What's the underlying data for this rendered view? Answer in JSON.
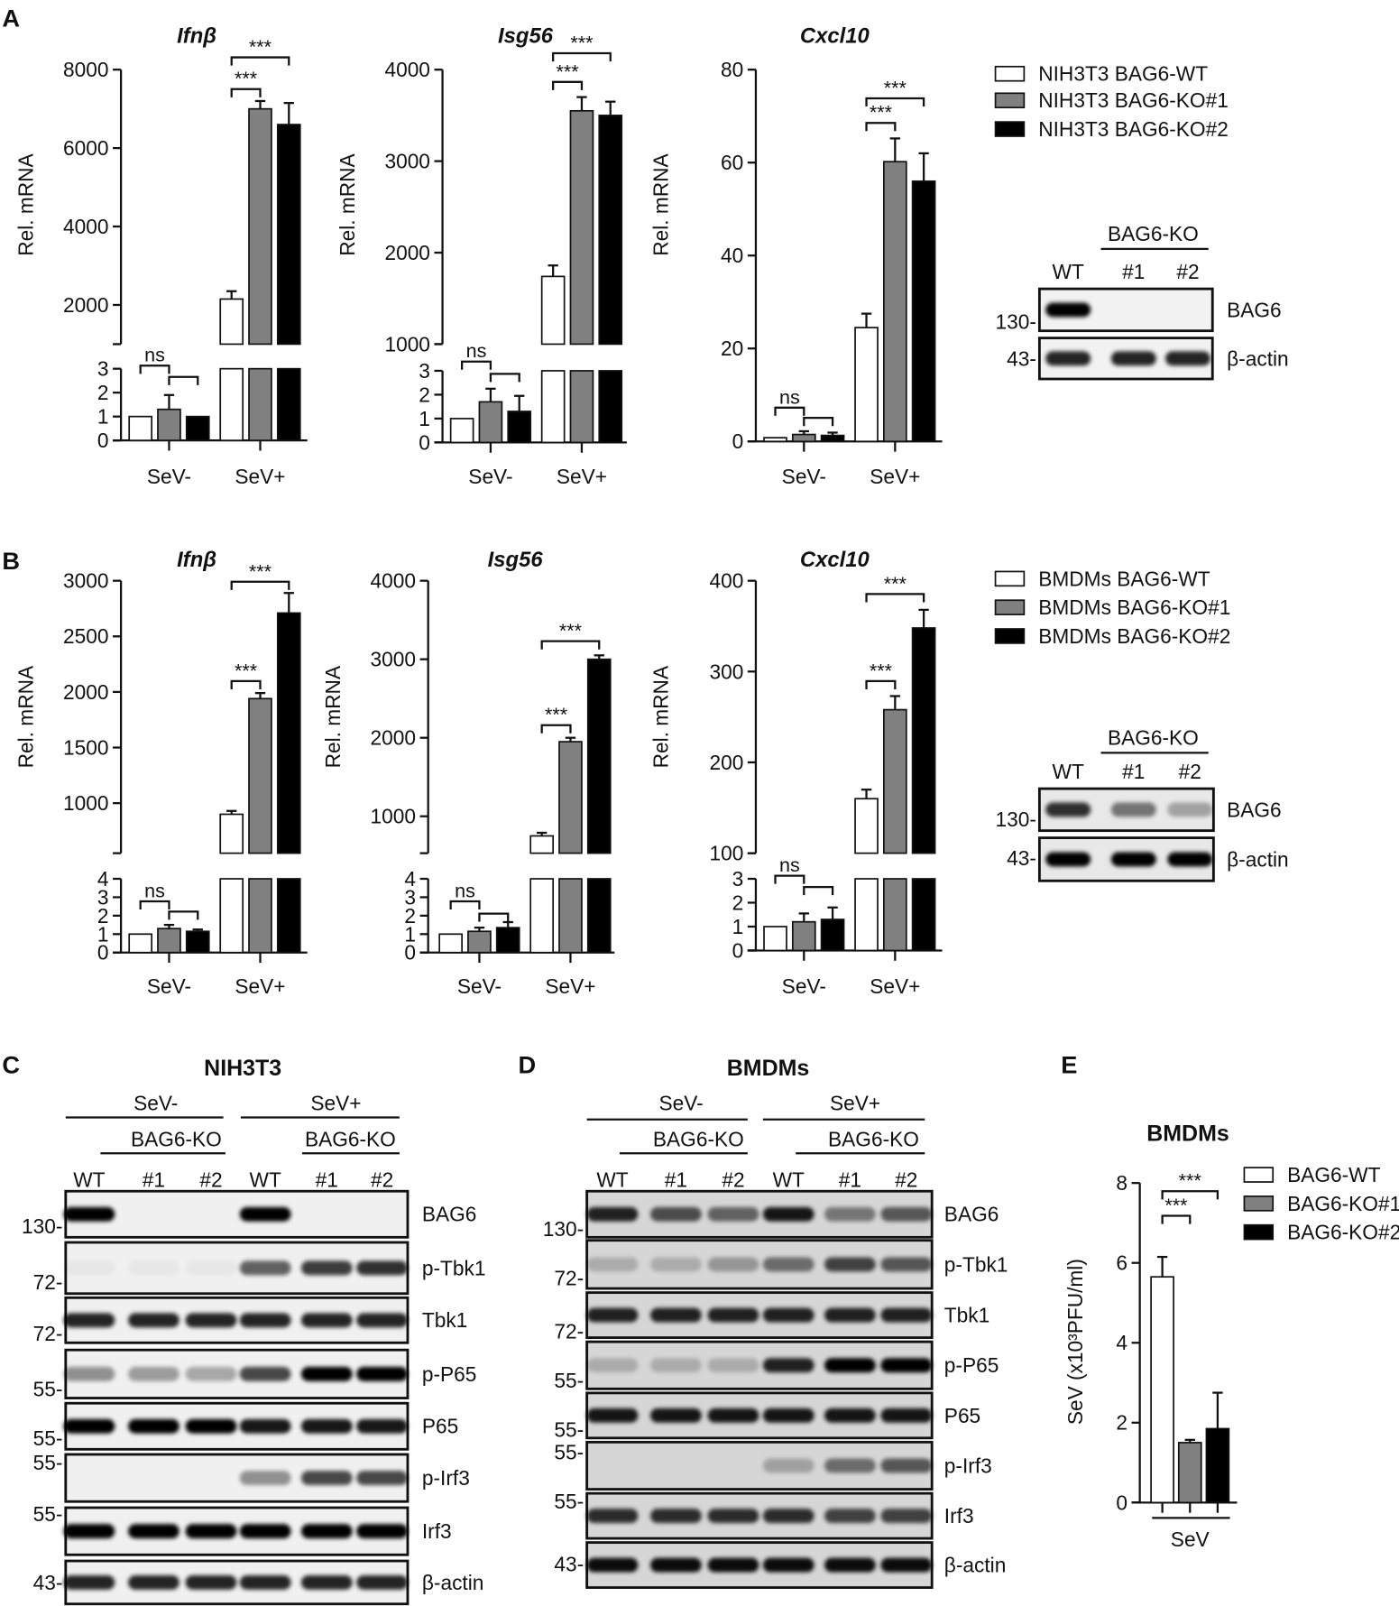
{
  "panel_labels": [
    "A",
    "B",
    "C",
    "D",
    "E"
  ],
  "colors": {
    "WT": "#ffffff",
    "KO1": "#808080",
    "KO2": "#000000"
  },
  "chart_data": [
    {
      "type": "bar",
      "panel": "A",
      "title": "Ifnβ",
      "ylabel": "Rel. mRNA",
      "categories": [
        "SeV-",
        "SeV+"
      ],
      "y_axis_break": true,
      "ylim_lower": [
        0,
        3
      ],
      "ylim_upper": [
        1000,
        8000
      ],
      "yticks_lower": [
        "0",
        "1",
        "2",
        "3"
      ],
      "yticks_upper": [
        "2000",
        "4000",
        "6000",
        "8000"
      ],
      "series": [
        {
          "name": "NIH3T3 BAG6-WT",
          "values": [
            1,
            2150
          ],
          "errors": [
            0,
            200
          ]
        },
        {
          "name": "NIH3T3 BAG6-KO#1",
          "values": [
            1.3,
            7000
          ],
          "errors": [
            0.6,
            200
          ]
        },
        {
          "name": "NIH3T3 BAG6-KO#2",
          "values": [
            1,
            6600
          ],
          "errors": [
            0,
            550
          ]
        }
      ],
      "annotations": [
        {
          "category": "SeV+",
          "compare": [
            0,
            1
          ],
          "label": "***"
        },
        {
          "category": "SeV+",
          "compare": [
            0,
            2
          ],
          "label": "***"
        },
        {
          "category": "SeV-",
          "compare": [
            0,
            1
          ],
          "label": "ns"
        },
        {
          "category": "SeV-",
          "compare": [
            1,
            2
          ],
          "label": ""
        }
      ]
    },
    {
      "type": "bar",
      "panel": "A",
      "title": "Isg56",
      "ylabel": "Rel. mRNA",
      "categories": [
        "SeV-",
        "SeV+"
      ],
      "y_axis_break": true,
      "ylim_lower": [
        0,
        3
      ],
      "ylim_upper": [
        1000,
        4000
      ],
      "yticks_lower": [
        "0",
        "1",
        "2",
        "3"
      ],
      "yticks_upper": [
        "1000",
        "2000",
        "3000",
        "4000"
      ],
      "series": [
        {
          "name": "NIH3T3 BAG6-WT",
          "values": [
            1,
            1740
          ],
          "errors": [
            0,
            120
          ]
        },
        {
          "name": "NIH3T3 BAG6-KO#1",
          "values": [
            1.7,
            3550
          ],
          "errors": [
            0.55,
            150
          ]
        },
        {
          "name": "NIH3T3 BAG6-KO#2",
          "values": [
            1.3,
            3500
          ],
          "errors": [
            0.65,
            150
          ]
        }
      ],
      "annotations": [
        {
          "category": "SeV+",
          "compare": [
            0,
            1
          ],
          "label": "***"
        },
        {
          "category": "SeV+",
          "compare": [
            0,
            2
          ],
          "label": "***"
        },
        {
          "category": "SeV-",
          "compare": [
            0,
            1
          ],
          "label": "ns"
        },
        {
          "category": "SeV-",
          "compare": [
            1,
            2
          ],
          "label": ""
        }
      ]
    },
    {
      "type": "bar",
      "panel": "A",
      "title": "Cxcl10",
      "ylabel": "Rel. mRNA",
      "categories": [
        "SeV-",
        "SeV+"
      ],
      "y_axis_break": false,
      "ylim": [
        0,
        80
      ],
      "yticks": [
        "0",
        "20",
        "40",
        "60",
        "80"
      ],
      "series": [
        {
          "name": "NIH3T3 BAG6-WT",
          "values": [
            0.8,
            24.5
          ],
          "errors": [
            0,
            3
          ]
        },
        {
          "name": "NIH3T3 BAG6-KO#1",
          "values": [
            1.5,
            60.2
          ],
          "errors": [
            0.7,
            5
          ]
        },
        {
          "name": "NIH3T3 BAG6-KO#2",
          "values": [
            1.3,
            56
          ],
          "errors": [
            0.6,
            6
          ]
        }
      ],
      "annotations": [
        {
          "category": "SeV+",
          "compare": [
            0,
            1
          ],
          "label": "***"
        },
        {
          "category": "SeV+",
          "compare": [
            0,
            2
          ],
          "label": "***"
        },
        {
          "category": "SeV-",
          "compare": [
            0,
            1
          ],
          "label": "ns"
        },
        {
          "category": "SeV-",
          "compare": [
            1,
            2
          ],
          "label": ""
        }
      ]
    },
    {
      "type": "bar",
      "panel": "B",
      "title": "Ifnβ",
      "ylabel": "Rel. mRNA",
      "categories": [
        "SeV-",
        "SeV+"
      ],
      "y_axis_break": true,
      "ylim_lower": [
        0,
        4
      ],
      "ylim_upper": [
        550,
        3000
      ],
      "yticks_lower": [
        "0",
        "1",
        "2",
        "3",
        "4"
      ],
      "yticks_upper": [
        "1000",
        "1500",
        "2000",
        "2500",
        "3000"
      ],
      "series": [
        {
          "name": "BMDMs BAG6-WT",
          "values": [
            1,
            900
          ],
          "errors": [
            0,
            30
          ]
        },
        {
          "name": "BMDMs BAG6-KO#1",
          "values": [
            1.3,
            1940
          ],
          "errors": [
            0.2,
            50
          ]
        },
        {
          "name": "BMDMs BAG6-KO#2",
          "values": [
            1.15,
            2710
          ],
          "errors": [
            0.1,
            180
          ]
        }
      ],
      "annotations": [
        {
          "category": "SeV+",
          "compare": [
            0,
            1
          ],
          "label": "***"
        },
        {
          "category": "SeV+",
          "compare": [
            0,
            2
          ],
          "label": "***"
        },
        {
          "category": "SeV-",
          "compare": [
            0,
            1
          ],
          "label": "ns"
        },
        {
          "category": "SeV-",
          "compare": [
            1,
            2
          ],
          "label": ""
        }
      ]
    },
    {
      "type": "bar",
      "panel": "B",
      "title": "Isg56",
      "ylabel": "Rel. mRNA",
      "categories": [
        "SeV-",
        "SeV+"
      ],
      "y_axis_break": true,
      "ylim_lower": [
        0,
        4
      ],
      "ylim_upper": [
        530,
        4000
      ],
      "yticks_lower": [
        "0",
        "1",
        "2",
        "3",
        "4"
      ],
      "yticks_upper": [
        "1000",
        "2000",
        "3000",
        "4000"
      ],
      "series": [
        {
          "name": "BMDMs BAG6-WT",
          "values": [
            1,
            750
          ],
          "errors": [
            0,
            40
          ]
        },
        {
          "name": "BMDMs BAG6-KO#1",
          "values": [
            1.15,
            1950
          ],
          "errors": [
            0.2,
            50
          ]
        },
        {
          "name": "BMDMs BAG6-KO#2",
          "values": [
            1.35,
            3000
          ],
          "errors": [
            0.3,
            50
          ]
        }
      ],
      "annotations": [
        {
          "category": "SeV+",
          "compare": [
            0,
            1
          ],
          "label": "***"
        },
        {
          "category": "SeV+",
          "compare": [
            0,
            2
          ],
          "label": "***"
        },
        {
          "category": "SeV-",
          "compare": [
            0,
            1
          ],
          "label": "ns"
        },
        {
          "category": "SeV-",
          "compare": [
            1,
            2
          ],
          "label": ""
        }
      ]
    },
    {
      "type": "bar",
      "panel": "B",
      "title": "Cxcl10",
      "ylabel": "Rel. mRNA",
      "categories": [
        "SeV-",
        "SeV+"
      ],
      "y_axis_break": true,
      "ylim_lower": [
        0,
        3
      ],
      "ylim_upper": [
        100,
        400
      ],
      "yticks_lower": [
        "0",
        "1",
        "2",
        "3"
      ],
      "yticks_upper": [
        "100",
        "200",
        "300",
        "400"
      ],
      "series": [
        {
          "name": "BMDMs BAG6-WT",
          "values": [
            1,
            160
          ],
          "errors": [
            0,
            10
          ]
        },
        {
          "name": "BMDMs BAG6-KO#1",
          "values": [
            1.2,
            258
          ],
          "errors": [
            0.35,
            15
          ]
        },
        {
          "name": "BMDMs BAG6-KO#2",
          "values": [
            1.3,
            348
          ],
          "errors": [
            0.5,
            20
          ]
        }
      ],
      "annotations": [
        {
          "category": "SeV+",
          "compare": [
            0,
            1
          ],
          "label": "***"
        },
        {
          "category": "SeV+",
          "compare": [
            0,
            2
          ],
          "label": "***"
        },
        {
          "category": "SeV-",
          "compare": [
            0,
            1
          ],
          "label": "ns"
        },
        {
          "category": "SeV-",
          "compare": [
            1,
            2
          ],
          "label": ""
        }
      ]
    },
    {
      "type": "bar",
      "panel": "E",
      "title": "BMDMs",
      "ylabel": "SeV (x10³PFU/ml)",
      "categories": [
        "SeV"
      ],
      "y_axis_break": false,
      "ylim": [
        0,
        8
      ],
      "yticks": [
        "0",
        "2",
        "4",
        "6",
        "8"
      ],
      "series": [
        {
          "name": "BAG6-WT",
          "values": [
            5.65
          ],
          "errors": [
            0.5
          ]
        },
        {
          "name": "BAG6-KO#1",
          "values": [
            1.5
          ],
          "errors": [
            0.07
          ]
        },
        {
          "name": "BAG6-KO#2",
          "values": [
            1.85
          ],
          "errors": [
            0.9
          ]
        }
      ],
      "annotations": [
        {
          "category": "SeV",
          "compare": [
            0,
            1
          ],
          "label": "***"
        },
        {
          "category": "SeV",
          "compare": [
            0,
            2
          ],
          "label": "***"
        }
      ]
    }
  ],
  "legends": [
    {
      "panel": "A",
      "entries": [
        "NIH3T3 BAG6-WT",
        "NIH3T3 BAG6-KO#1",
        "NIH3T3 BAG6-KO#2"
      ]
    },
    {
      "panel": "B",
      "entries": [
        "BMDMs BAG6-WT",
        "BMDMs BAG6-KO#1",
        "BMDMs BAG6-KO#2"
      ]
    },
    {
      "panel": "E",
      "entries": [
        "BAG6-WT",
        "BAG6-KO#1",
        "BAG6-KO#2"
      ]
    }
  ],
  "blots": [
    {
      "panel": "A",
      "title": "",
      "groups": [],
      "subgroups": [
        "BAG6-KO"
      ],
      "lanes": [
        "WT",
        "#1",
        "#2"
      ],
      "rows": [
        {
          "label": "BAG6",
          "marker": "130-",
          "bands": [
            1,
            0,
            0
          ]
        },
        {
          "label": "β-actin",
          "marker": "43-",
          "bands": [
            0.85,
            0.85,
            0.85
          ]
        }
      ]
    },
    {
      "panel": "B",
      "title": "",
      "groups": [],
      "subgroups": [
        "BAG6-KO"
      ],
      "lanes": [
        "WT",
        "#1",
        "#2"
      ],
      "rows": [
        {
          "label": "BAG6",
          "marker": "130-",
          "bands": [
            0.8,
            0.5,
            0.3
          ]
        },
        {
          "label": "β-actin",
          "marker": "43-",
          "bands": [
            1,
            1,
            1
          ]
        }
      ]
    },
    {
      "panel": "C",
      "title": "NIH3T3",
      "groups": [
        "SeV-",
        "SeV+"
      ],
      "subgroups": [
        "BAG6-KO",
        "BAG6-KO"
      ],
      "lanes": [
        "WT",
        "#1",
        "#2",
        "WT",
        "#1",
        "#2"
      ],
      "rows": [
        {
          "label": "BAG6",
          "marker": "130-",
          "bands": [
            1,
            0,
            0,
            1,
            0,
            0
          ]
        },
        {
          "label": "p-Tbk1",
          "marker": "72-",
          "bands": [
            0.04,
            0.04,
            0.04,
            0.6,
            0.75,
            0.8
          ]
        },
        {
          "label": "Tbk1",
          "marker": "72-",
          "bands": [
            0.85,
            0.85,
            0.85,
            0.85,
            0.85,
            0.85
          ]
        },
        {
          "label": "p-P65",
          "marker": "55-",
          "bands": [
            0.4,
            0.35,
            0.3,
            0.7,
            1,
            1
          ]
        },
        {
          "label": "P65",
          "marker": "55-",
          "bands": [
            1,
            1,
            1,
            0.9,
            0.9,
            0.9
          ]
        },
        {
          "label": "p-Irf3",
          "marker": "55-",
          "bands": [
            0,
            0,
            0,
            0.4,
            0.7,
            0.7
          ]
        },
        {
          "label": "Irf3",
          "marker": "55-",
          "bands": [
            1,
            1,
            1,
            1,
            1,
            1
          ]
        },
        {
          "label": "β-actin",
          "marker": "43-",
          "bands": [
            0.85,
            0.85,
            0.85,
            0.85,
            0.85,
            0.85
          ]
        }
      ]
    },
    {
      "panel": "D",
      "title": "BMDMs",
      "groups": [
        "SeV-",
        "SeV+"
      ],
      "subgroups": [
        "BAG6-KO",
        "BAG6-KO"
      ],
      "lanes": [
        "WT",
        "#1",
        "#2",
        "WT",
        "#1",
        "#2"
      ],
      "rows": [
        {
          "label": "BAG6",
          "marker": "130-",
          "bands": [
            0.85,
            0.65,
            0.55,
            0.9,
            0.45,
            0.6
          ]
        },
        {
          "label": "p-Tbk1",
          "marker": "72-",
          "bands": [
            0.2,
            0.2,
            0.3,
            0.5,
            0.7,
            0.6
          ]
        },
        {
          "label": "Tbk1",
          "marker": "72-",
          "bands": [
            0.85,
            0.85,
            0.85,
            0.85,
            0.85,
            0.85
          ]
        },
        {
          "label": "p-P65",
          "marker": "55-",
          "bands": [
            0.2,
            0.2,
            0.2,
            0.85,
            1,
            1
          ]
        },
        {
          "label": "P65",
          "marker": "55-",
          "bands": [
            0.9,
            0.9,
            0.9,
            0.9,
            0.9,
            0.9
          ]
        },
        {
          "label": "p-Irf3",
          "marker": "55-",
          "bands": [
            0,
            0,
            0,
            0.25,
            0.5,
            0.6
          ]
        },
        {
          "label": "Irf3",
          "marker": "55-",
          "bands": [
            0.8,
            0.8,
            0.8,
            0.8,
            0.7,
            0.7
          ]
        },
        {
          "label": "β-actin",
          "marker": "43-",
          "bands": [
            0.95,
            0.95,
            0.95,
            0.95,
            0.95,
            0.95
          ]
        }
      ]
    }
  ]
}
